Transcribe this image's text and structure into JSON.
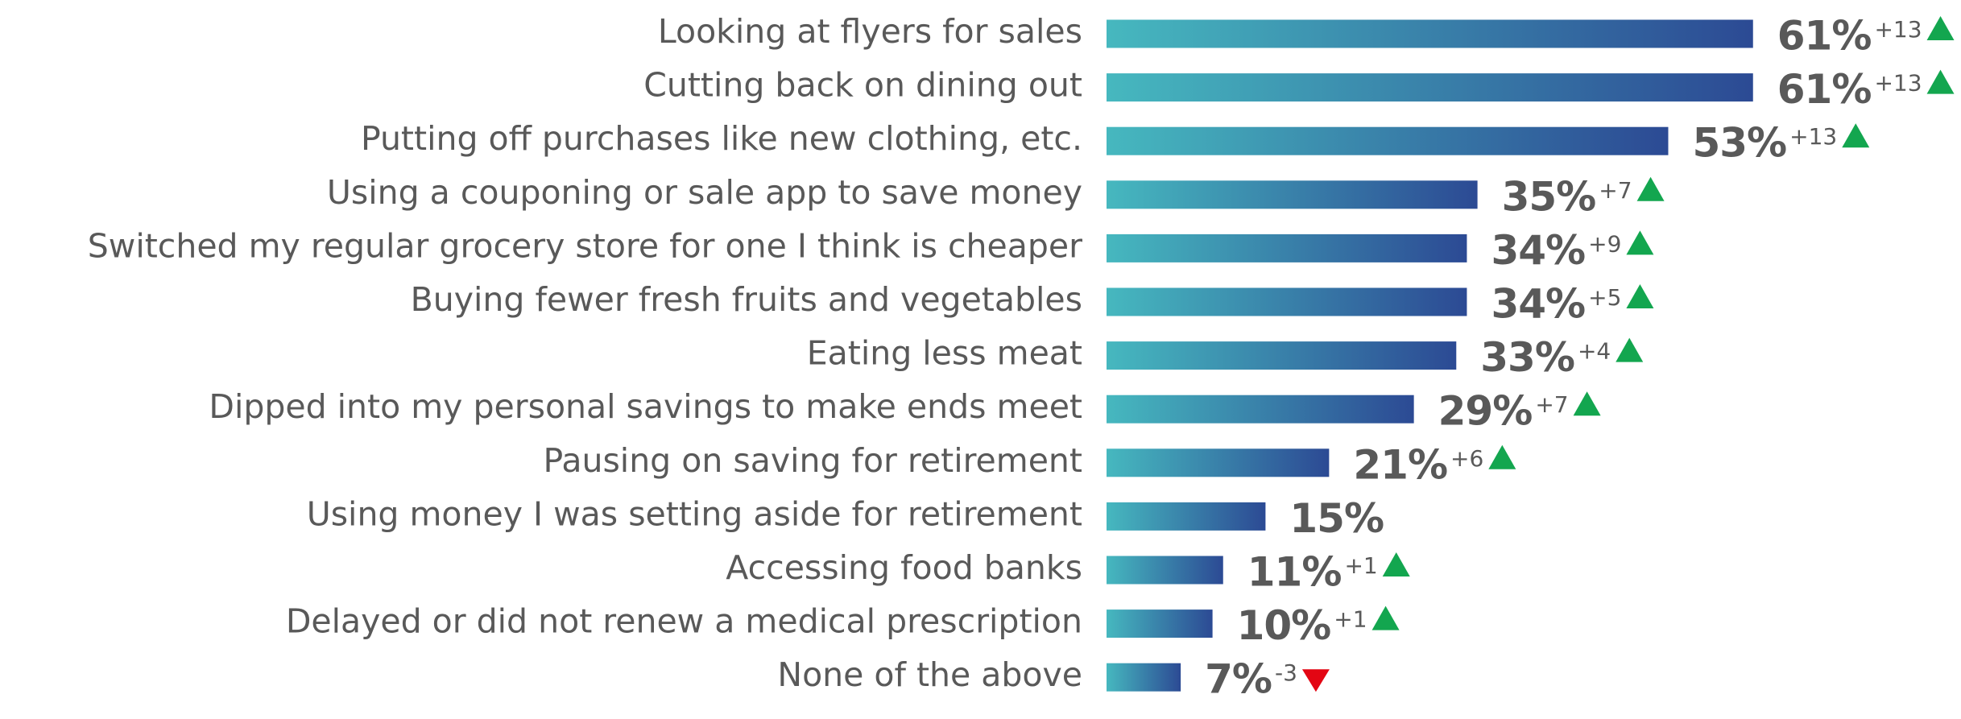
{
  "chart_data": {
    "type": "bar",
    "orientation": "horizontal",
    "categories": [
      "Looking at flyers for sales",
      "Cutting back on dining out",
      "Putting off purchases like new clothing, etc.",
      "Using a couponing or sale app to save money",
      "Switched my regular grocery store for one I think is cheaper",
      "Buying fewer fresh fruits and vegetables",
      "Eating less meat",
      "Dipped into my personal savings to make ends meet",
      "Pausing on saving for retirement",
      "Using money I was setting aside for retirement",
      "Accessing food banks",
      "Delayed or did not renew a medical prescription",
      "None of the above"
    ],
    "values": [
      61,
      61,
      53,
      35,
      34,
      34,
      33,
      29,
      21,
      15,
      11,
      10,
      7
    ],
    "value_labels": [
      "61%",
      "61%",
      "53%",
      "35%",
      "34%",
      "34%",
      "33%",
      "29%",
      "21%",
      "15%",
      "11%",
      "10%",
      "7%"
    ],
    "colors": [
      "#46b8bf",
      "#2c4a94"
    ],
    "changes": {
      "values": [
        13,
        13,
        13,
        7,
        9,
        5,
        4,
        7,
        6,
        null,
        1,
        1,
        -3
      ],
      "value_labels": [
        "+13",
        "+13",
        "+13",
        "+7",
        "+9",
        "+5",
        "+4",
        "+7",
        "+6",
        null,
        "+1",
        "+1",
        "-3"
      ],
      "up_color": "#13a64f",
      "down_color": "#e30613"
    }
  }
}
